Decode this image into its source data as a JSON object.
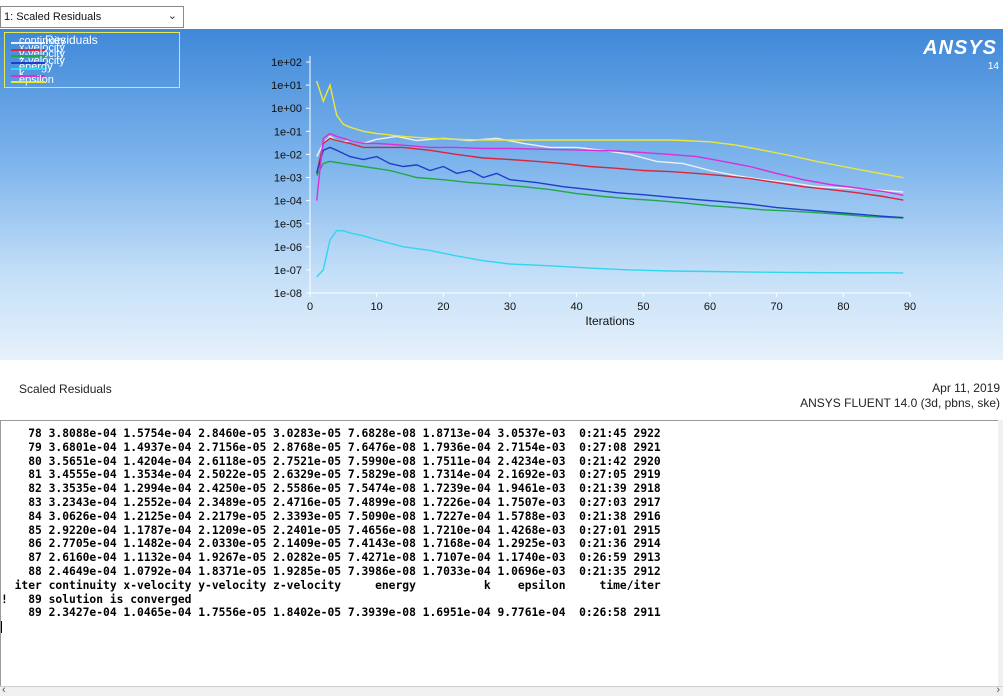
{
  "window": {
    "view_selector": "1: Scaled Residuals"
  },
  "graphics": {
    "logo": "ANSYS",
    "logo_version": "14",
    "legend_title": "Residuals",
    "caption_left": "Scaled Residuals",
    "caption_date": "Apr 11, 2019",
    "caption_product": "ANSYS FLUENT 14.0 (3d, pbns, ske)"
  },
  "chart_data": {
    "type": "line",
    "title": "",
    "xlabel": "Iterations",
    "ylabel": "",
    "xlim": [
      0,
      90
    ],
    "ylim": [
      1e-08,
      100
    ],
    "yscale": "log",
    "xticks": [
      "0",
      "10",
      "20",
      "30",
      "40",
      "50",
      "60",
      "70",
      "80",
      "90"
    ],
    "yticks": [
      "1e-08",
      "1e-07",
      "1e-06",
      "1e-05",
      "1e-04",
      "1e-03",
      "1e-02",
      "1e-01",
      "1e+00",
      "1e+01",
      "1e+02"
    ],
    "legend_position": "top-left",
    "series": [
      {
        "name": "continuity",
        "color": "#f0f0f0",
        "x": [
          1,
          2,
          3,
          4,
          5,
          6,
          8,
          10,
          13,
          16,
          20,
          24,
          28,
          32,
          36,
          40,
          44,
          48,
          52,
          56,
          60,
          64,
          68,
          72,
          76,
          80,
          84,
          88,
          89
        ],
        "y": [
          0.008,
          0.03,
          0.06,
          0.04,
          0.035,
          0.04,
          0.03,
          0.045,
          0.06,
          0.04,
          0.05,
          0.04,
          0.05,
          0.03,
          0.02,
          0.02,
          0.015,
          0.01,
          0.005,
          0.004,
          0.002,
          0.0012,
          0.0008,
          0.0006,
          0.0004,
          0.00035,
          0.0003,
          0.00025,
          0.000234
        ]
      },
      {
        "name": "x-velocity",
        "color": "#d8263c",
        "x": [
          1,
          2,
          3,
          4,
          6,
          8,
          10,
          14,
          18,
          22,
          26,
          30,
          34,
          38,
          42,
          46,
          50,
          54,
          58,
          62,
          66,
          70,
          74,
          78,
          82,
          86,
          89
        ],
        "y": [
          0.0015,
          0.03,
          0.05,
          0.04,
          0.03,
          0.02,
          0.02,
          0.02,
          0.015,
          0.01,
          0.007,
          0.006,
          0.005,
          0.004,
          0.003,
          0.0025,
          0.002,
          0.0018,
          0.0015,
          0.0012,
          0.0009,
          0.0006,
          0.0004,
          0.0003,
          0.00022,
          0.00015,
          0.000105
        ]
      },
      {
        "name": "y-velocity",
        "color": "#1fa84a",
        "x": [
          1,
          2,
          3,
          5,
          8,
          12,
          16,
          20,
          24,
          28,
          32,
          36,
          40,
          44,
          48,
          52,
          56,
          60,
          64,
          68,
          72,
          76,
          80,
          84,
          89
        ],
        "y": [
          0.0012,
          0.004,
          0.005,
          0.004,
          0.003,
          0.002,
          0.001,
          0.0008,
          0.0006,
          0.0005,
          0.0004,
          0.0003,
          0.0002,
          0.00015,
          0.00012,
          0.0001,
          8e-05,
          6e-05,
          5e-05,
          4e-05,
          3.5e-05,
          3e-05,
          2.5e-05,
          2e-05,
          1.76e-05
        ]
      },
      {
        "name": "z-velocity",
        "color": "#1c3ec8",
        "x": [
          1,
          2,
          3,
          4,
          6,
          8,
          10,
          12,
          14,
          16,
          18,
          20,
          22,
          24,
          26,
          28,
          30,
          34,
          38,
          42,
          46,
          50,
          54,
          58,
          62,
          66,
          70,
          74,
          78,
          82,
          86,
          89
        ],
        "y": [
          0.0015,
          0.015,
          0.02,
          0.015,
          0.008,
          0.006,
          0.008,
          0.004,
          0.003,
          0.0035,
          0.002,
          0.003,
          0.0015,
          0.002,
          0.001,
          0.0015,
          0.0008,
          0.0006,
          0.0004,
          0.0003,
          0.00022,
          0.00018,
          0.00014,
          0.00011,
          9e-05,
          7e-05,
          5e-05,
          4e-05,
          3.2e-05,
          2.6e-05,
          2.1e-05,
          1.84e-05
        ]
      },
      {
        "name": "energy",
        "color": "#32d6f0",
        "x": [
          1,
          2,
          3,
          4,
          5,
          6,
          8,
          10,
          14,
          18,
          22,
          26,
          30,
          36,
          42,
          48,
          54,
          60,
          66,
          72,
          78,
          84,
          89
        ],
        "y": [
          5e-08,
          1e-07,
          2e-06,
          5e-06,
          5e-06,
          4e-06,
          3e-06,
          2e-06,
          1e-06,
          7e-07,
          4e-07,
          2.5e-07,
          1.8e-07,
          1.5e-07,
          1.2e-07,
          1e-07,
          9e-08,
          8.5e-08,
          8e-08,
          7.8e-08,
          7.6e-08,
          7.5e-08,
          7.4e-08
        ]
      },
      {
        "name": "k",
        "color": "#d92fd9",
        "x": [
          1,
          2,
          3,
          4,
          5,
          6,
          8,
          10,
          14,
          18,
          22,
          26,
          30,
          34,
          38,
          42,
          46,
          50,
          54,
          58,
          62,
          66,
          70,
          74,
          78,
          82,
          86,
          89
        ],
        "y": [
          0.0001,
          0.05,
          0.08,
          0.06,
          0.05,
          0.04,
          0.03,
          0.03,
          0.025,
          0.02,
          0.02,
          0.018,
          0.018,
          0.017,
          0.016,
          0.015,
          0.014,
          0.012,
          0.01,
          0.008,
          0.005,
          0.003,
          0.0015,
          0.0008,
          0.0005,
          0.00035,
          0.00025,
          0.00017
        ]
      },
      {
        "name": "epsilon",
        "color": "#e8e83a",
        "x": [
          1,
          2,
          3,
          4,
          5,
          6,
          8,
          10,
          14,
          18,
          22,
          26,
          30,
          34,
          38,
          42,
          46,
          50,
          54,
          56,
          60,
          64,
          68,
          72,
          76,
          80,
          84,
          89
        ],
        "y": [
          15,
          2,
          10,
          0.5,
          0.2,
          0.15,
          0.1,
          0.08,
          0.06,
          0.05,
          0.045,
          0.042,
          0.042,
          0.042,
          0.042,
          0.042,
          0.042,
          0.042,
          0.042,
          0.04,
          0.035,
          0.025,
          0.015,
          0.009,
          0.005,
          0.003,
          0.0018,
          0.00098
        ]
      }
    ]
  },
  "console": {
    "lines": [
      "    78 3.8088e-04 1.5754e-04 2.8460e-05 3.0283e-05 7.6828e-08 1.8713e-04 3.0537e-03  0:21:45 2922",
      "    79 3.6801e-04 1.4937e-04 2.7156e-05 2.8768e-05 7.6476e-08 1.7936e-04 2.7154e-03  0:27:08 2921",
      "    80 3.5651e-04 1.4204e-04 2.6118e-05 2.7521e-05 7.5990e-08 1.7511e-04 2.4234e-03  0:21:42 2920",
      "    81 3.4555e-04 1.3534e-04 2.5022e-05 2.6329e-05 7.5829e-08 1.7314e-04 2.1692e-03  0:27:05 2919",
      "    82 3.3535e-04 1.2994e-04 2.4250e-05 2.5586e-05 7.5474e-08 1.7239e-04 1.9461e-03  0:21:39 2918",
      "    83 3.2343e-04 1.2552e-04 2.3489e-05 2.4716e-05 7.4899e-08 1.7226e-04 1.7507e-03  0:27:03 2917",
      "    84 3.0626e-04 1.2125e-04 2.2179e-05 2.3393e-05 7.5090e-08 1.7227e-04 1.5788e-03  0:21:38 2916",
      "    85 2.9220e-04 1.1787e-04 2.1209e-05 2.2401e-05 7.4656e-08 1.7210e-04 1.4268e-03  0:27:01 2915",
      "    86 2.7705e-04 1.1482e-04 2.0330e-05 2.1409e-05 7.4143e-08 1.7168e-04 1.2925e-03  0:21:36 2914",
      "    87 2.6160e-04 1.1132e-04 1.9267e-05 2.0282e-05 7.4271e-08 1.7107e-04 1.1740e-03  0:26:59 2913",
      "    88 2.4649e-04 1.0792e-04 1.8371e-05 1.9285e-05 7.3986e-08 1.7033e-04 1.0696e-03  0:21:35 2912",
      "  iter continuity x-velocity y-velocity z-velocity     energy          k    epsilon     time/iter",
      "!   89 solution is converged",
      "    89 2.3427e-04 1.0465e-04 1.7556e-05 1.8402e-05 7.3939e-08 1.6951e-04 9.7761e-04  0:26:58 2911"
    ]
  }
}
